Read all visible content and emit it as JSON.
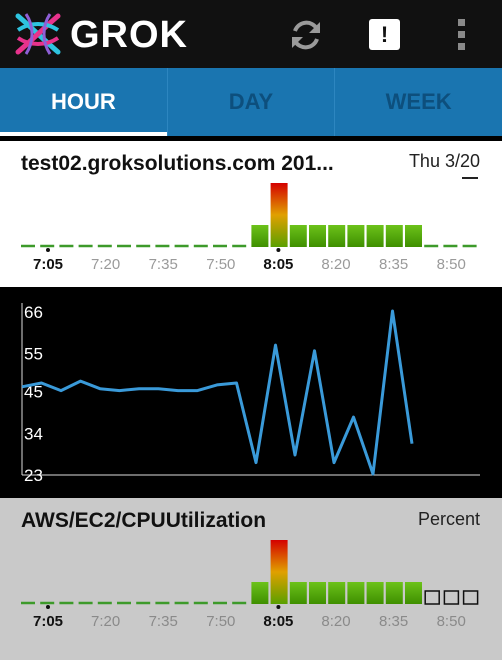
{
  "app": {
    "title": "GROK",
    "logo_icon": "grok-logo-icon"
  },
  "toolbar": {
    "refresh_icon": "refresh-icon",
    "alert_label": "!",
    "overflow_icon": "overflow-menu-icon"
  },
  "tabs": [
    {
      "label": "HOUR",
      "active": true
    },
    {
      "label": "DAY",
      "active": false
    },
    {
      "label": "WEEK",
      "active": false
    }
  ],
  "metrics": [
    {
      "name": "test02.groksolutions.com 201...",
      "side_label": "Thu 3/20",
      "time_labels": [
        "7:05",
        "7:20",
        "7:35",
        "7:50",
        "8:05",
        "8:20",
        "8:35",
        "8:50"
      ],
      "bold_labels": [
        "7:05",
        "8:05"
      ],
      "anomaly_levels": [
        0,
        0,
        0,
        0,
        0,
        0,
        0,
        0,
        0,
        0,
        0,
        0,
        1,
        3,
        1,
        1,
        1,
        1,
        1,
        1,
        1,
        0,
        0,
        0
      ],
      "no_data_slots": 0
    },
    {
      "name": "AWS/EC2/CPUUtilization",
      "side_label": "Percent",
      "time_labels": [
        "7:05",
        "7:20",
        "7:35",
        "7:50",
        "8:05",
        "8:20",
        "8:35",
        "8:50"
      ],
      "bold_labels": [
        "7:05",
        "8:05"
      ],
      "anomaly_levels": [
        0,
        0,
        0,
        0,
        0,
        0,
        0,
        0,
        0,
        0,
        0,
        0,
        1,
        3,
        1,
        1,
        1,
        1,
        1,
        1,
        1,
        0,
        0,
        0
      ],
      "no_data_slots": 3
    }
  ],
  "chart_data": {
    "type": "line",
    "title": "",
    "xlabel": "",
    "ylabel": "",
    "y_tick_labels": [
      66,
      55,
      45,
      34,
      23
    ],
    "ylim": [
      23,
      66
    ],
    "series": [
      {
        "values": [
          46,
          47,
          45,
          47.5,
          45.5,
          45,
          45.5,
          45.5,
          45,
          45,
          46.5,
          47,
          26,
          57,
          28,
          55.5,
          26,
          38,
          23,
          66,
          31
        ]
      }
    ],
    "color": "#3a9ad9",
    "grid": false
  }
}
